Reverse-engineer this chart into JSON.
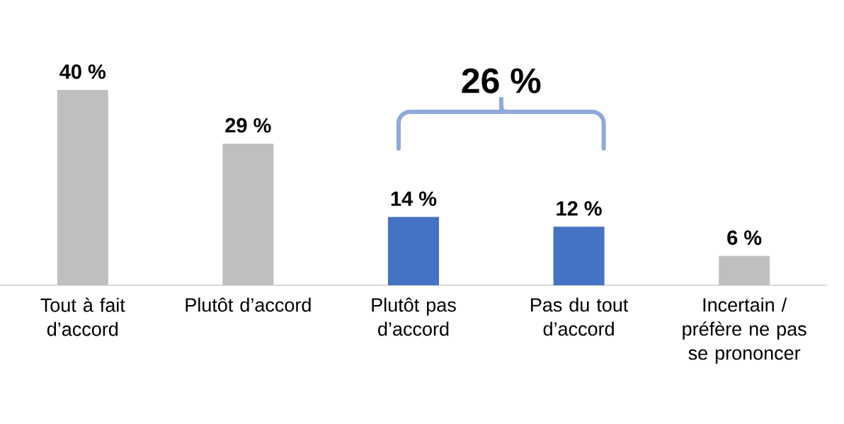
{
  "chart_data": {
    "type": "bar",
    "categories": [
      "Tout à fait d’accord",
      "Plutôt d’accord",
      "Plutôt pas d’accord",
      "Pas du tout d’accord",
      "Incertain / préfère ne pas se prononcer"
    ],
    "values": [
      40,
      29,
      14,
      12,
      6
    ],
    "colors": [
      "#bfbfbf",
      "#bfbfbf",
      "#4472c4",
      "#4472c4",
      "#bfbfbf"
    ],
    "value_labels": [
      "40 %",
      "29 %",
      "14 %",
      "12 %",
      "6 %"
    ],
    "annotations": [
      "26 %"
    ]
  }
}
